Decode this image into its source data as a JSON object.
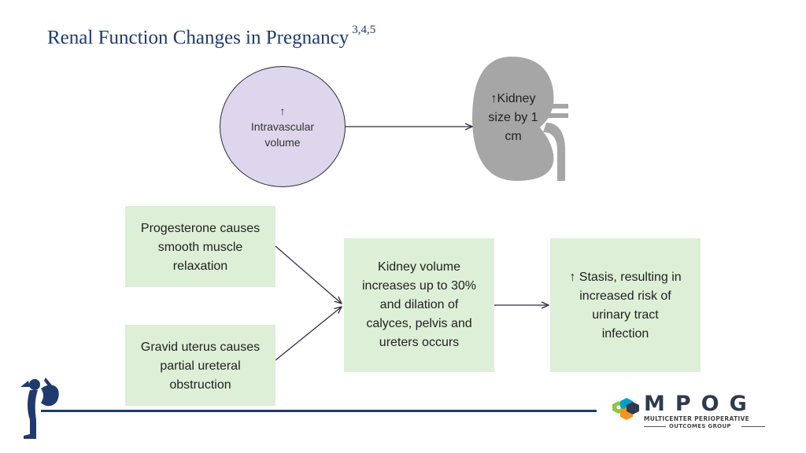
{
  "title": {
    "text": "Renal Function Changes in Pregnancy",
    "superscript": "3,4,5"
  },
  "circle": {
    "arrow": "↑",
    "line1": "Intravascular",
    "line2": "volume",
    "fill_color": "#ddd6ec"
  },
  "kidney": {
    "line1": "↑Kidney",
    "line2": "size by 1",
    "line3": "cm",
    "color": "#a6a6a6"
  },
  "boxes": {
    "progesterone": {
      "lines": [
        "Progesterone causes",
        "smooth muscle",
        "relaxation"
      ]
    },
    "gravid": {
      "lines": [
        "Gravid uterus causes",
        "partial ureteral",
        "obstruction"
      ]
    },
    "kidney_volume": {
      "lines": [
        "Kidney volume",
        "increases up to 30%",
        "and dilation of",
        "calyces, pelvis and",
        "ureters occurs"
      ]
    },
    "stasis": {
      "lines": [
        "↑ Stasis, resulting in",
        "increased risk of",
        "urinary tract",
        "infection"
      ]
    },
    "fill_color": "#ddefd7"
  },
  "logo": {
    "wordmark": "MPOG",
    "sub1": "MULTICENTER PERIOPERATIVE",
    "sub2": "OUTCOMES GROUP",
    "accent_colors": [
      "#8dc63f",
      "#f7941d",
      "#00a0c6",
      "#2f3b4c"
    ]
  },
  "footer": {
    "line_color": "#1f3a6e"
  }
}
